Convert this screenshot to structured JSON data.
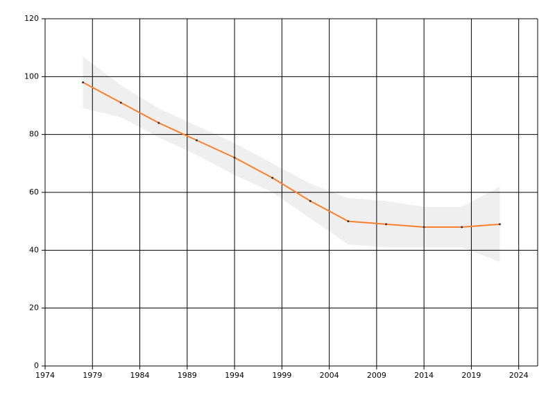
{
  "chart_data": {
    "type": "line",
    "x": [
      1978,
      1982,
      1986,
      1990,
      1994,
      1998,
      2002,
      2006,
      2010,
      2014,
      2018,
      2022
    ],
    "series": [
      {
        "color": "#ff7f2a",
        "values": [
          98,
          91,
          84,
          78,
          72,
          65,
          57,
          50,
          49,
          48,
          48,
          49
        ]
      }
    ],
    "band_upper": [
      107,
      97,
      89,
      83,
      77,
      70,
      63,
      58,
      57,
      55,
      55,
      62
    ],
    "band_lower": [
      89,
      86,
      79,
      73,
      66,
      60,
      51,
      42,
      41,
      41,
      41,
      36
    ],
    "band_color": "#efefef",
    "xlim": [
      1974,
      2026
    ],
    "xticks": [
      1974,
      1979,
      1984,
      1989,
      1994,
      1999,
      2004,
      2009,
      2014,
      2019,
      2024
    ],
    "ylim": [
      0,
      120
    ],
    "yticks": [
      0,
      20,
      40,
      60,
      80,
      100,
      120
    ],
    "grid": true
  }
}
